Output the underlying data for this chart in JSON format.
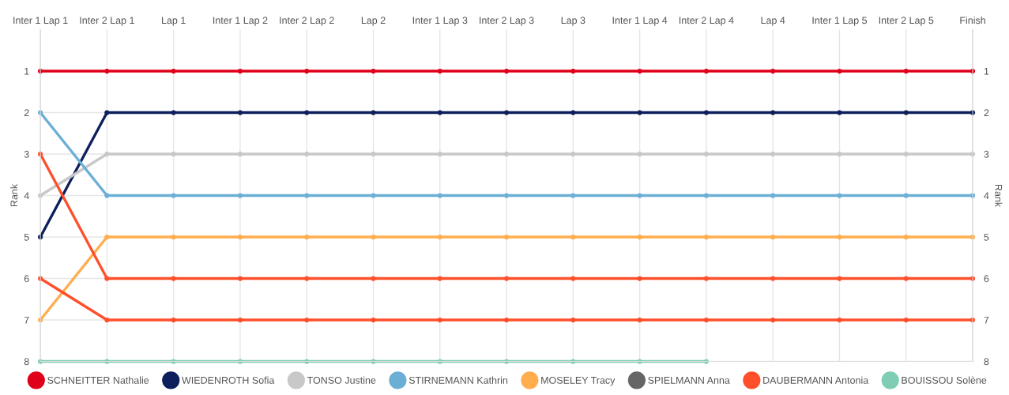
{
  "chart_data": {
    "type": "line",
    "categories": [
      "Inter 1 Lap 1",
      "Inter 2 Lap 1",
      "Lap 1",
      "Inter 1 Lap 2",
      "Inter 2 Lap 2",
      "Lap 2",
      "Inter 1 Lap 3",
      "Inter 2 Lap 3",
      "Lap 3",
      "Inter 1 Lap 4",
      "Inter 2 Lap 4",
      "Lap 4",
      "Inter 1 Lap 5",
      "Inter 2 Lap 5",
      "Finish"
    ],
    "ylabel": "Rank",
    "y2label": "Rank",
    "ylim": [
      8,
      0
    ],
    "yticks": [
      1,
      2,
      3,
      4,
      5,
      6,
      7,
      8
    ],
    "y2lim": [
      8,
      0
    ],
    "y2ticks": [
      1,
      2,
      3,
      4,
      5,
      6,
      7,
      8
    ],
    "grid": true,
    "legend": "bottom",
    "marker": "circle",
    "line_style": "solid",
    "series": [
      {
        "name": "SCHNEITTER Nathalie",
        "color": "#e0001a",
        "values": [
          1,
          1,
          1,
          1,
          1,
          1,
          1,
          1,
          1,
          1,
          1,
          1,
          1,
          1,
          1
        ]
      },
      {
        "name": "WIEDENROTH Sofia",
        "color": "#0d1f5c",
        "values": [
          5,
          2,
          2,
          2,
          2,
          2,
          2,
          2,
          2,
          2,
          2,
          2,
          2,
          2,
          2
        ]
      },
      {
        "name": "TONSO Justine",
        "color": "#c8c8c8",
        "values": [
          4,
          3,
          3,
          3,
          3,
          3,
          3,
          3,
          3,
          3,
          3,
          3,
          3,
          3,
          3
        ]
      },
      {
        "name": "STIRNEMANN Kathrin",
        "color": "#6baed6",
        "values": [
          2,
          4,
          4,
          4,
          4,
          4,
          4,
          4,
          4,
          4,
          4,
          4,
          4,
          4,
          4
        ]
      },
      {
        "name": "MOSELEY Tracy",
        "color": "#ffad4d",
        "values": [
          7,
          5,
          5,
          5,
          5,
          5,
          5,
          5,
          5,
          5,
          5,
          5,
          5,
          5,
          5
        ]
      },
      {
        "name": "SPIELMANN Anna",
        "color": "#666666",
        "values": [
          null,
          null,
          null,
          null,
          null,
          null,
          null,
          null,
          null,
          null,
          null,
          null,
          null,
          null,
          null
        ]
      },
      {
        "name": "DAUBERMANN Antonia",
        "color": "#ff4f2a",
        "values": [
          3,
          6,
          6,
          6,
          6,
          6,
          6,
          6,
          6,
          6,
          6,
          6,
          6,
          6,
          6
        ]
      },
      {
        "color": "#ff4f2a",
        "values": [
          6,
          7,
          7,
          7,
          7,
          7,
          7,
          7,
          7,
          7,
          7,
          7,
          7,
          7,
          7
        ]
      },
      {
        "name": "BOUISSOU Solène",
        "color": "#7fcdb5",
        "values": [
          8,
          8,
          8,
          8,
          8,
          8,
          8,
          8,
          8,
          8,
          8,
          null,
          null,
          null,
          null
        ]
      }
    ]
  }
}
